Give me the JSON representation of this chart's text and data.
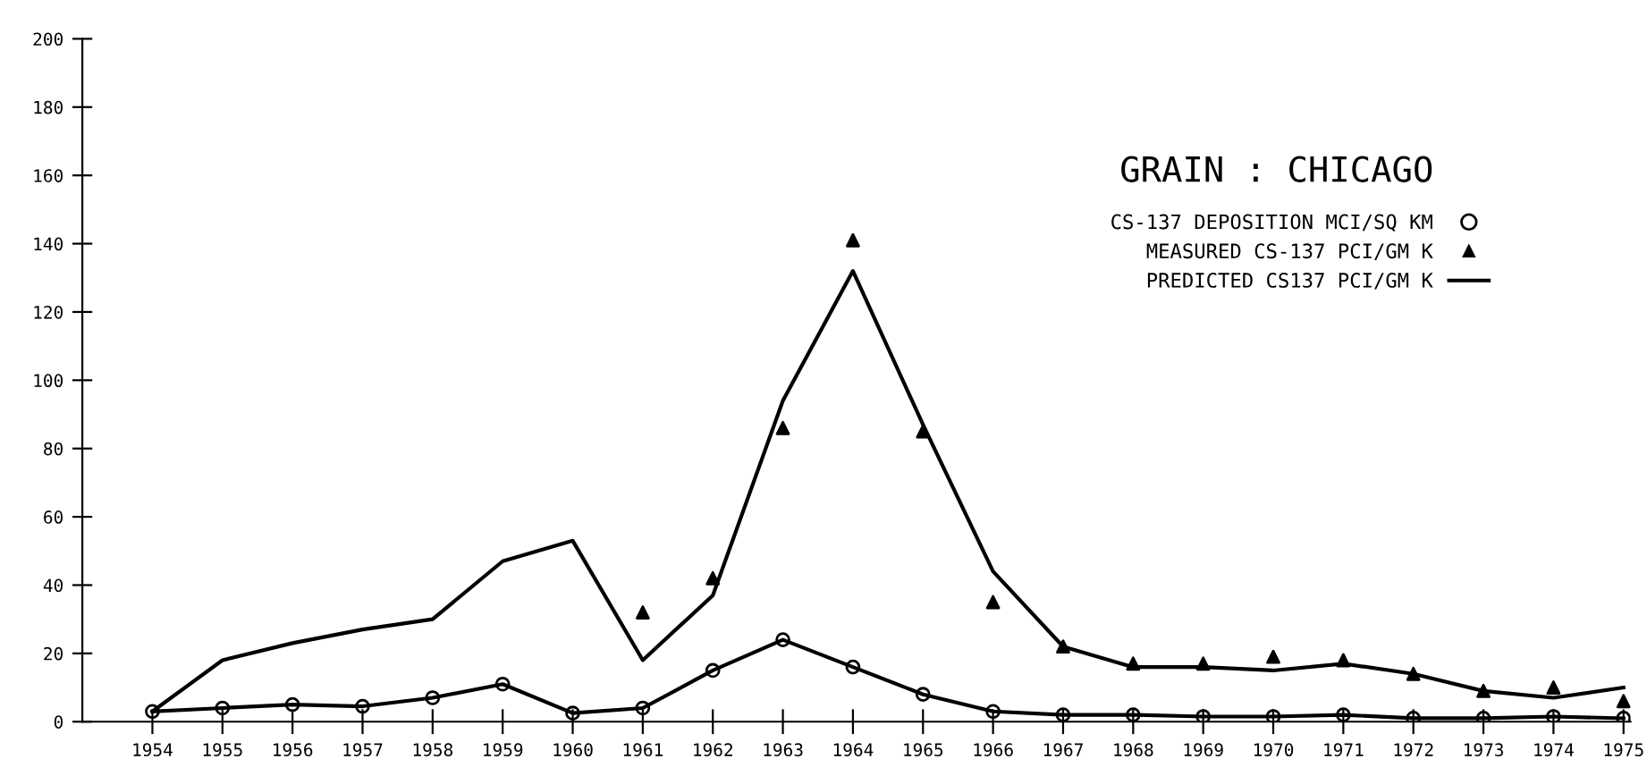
{
  "chart_data": {
    "type": "line",
    "title": "GRAIN : CHICAGO",
    "categories": [
      "1954",
      "1955",
      "1956",
      "1957",
      "1958",
      "1959",
      "1960",
      "1961",
      "1962",
      "1963",
      "1964",
      "1965",
      "1966",
      "1967",
      "1968",
      "1969",
      "1970",
      "1971",
      "1972",
      "1973",
      "1974",
      "1975"
    ],
    "series": [
      {
        "name": "CS-137 DEPOSITION MCI/SQ KM",
        "marker": "circle",
        "color": "#000000",
        "values": [
          3,
          4,
          5,
          4.5,
          7,
          11,
          2.5,
          4,
          15,
          24,
          16,
          8,
          3,
          2,
          2,
          1.5,
          1.5,
          2,
          1,
          1,
          1.5,
          1
        ]
      },
      {
        "name": "MEASURED CS-137 PCI/GM K",
        "type": "scatter",
        "marker": "triangle",
        "color": "#000000",
        "values": [
          null,
          null,
          null,
          null,
          null,
          null,
          null,
          32,
          42,
          86,
          141,
          85,
          35,
          22,
          17,
          17,
          19,
          18,
          14,
          9,
          10,
          6
        ]
      },
      {
        "name": "PREDICTED CS137 PCI/GM K",
        "marker": "none",
        "color": "#000000",
        "values": [
          3,
          18,
          23,
          27,
          30,
          47,
          53,
          18,
          37,
          94,
          132,
          87,
          44,
          22,
          16,
          16,
          15,
          17,
          14,
          9,
          7,
          10
        ]
      }
    ],
    "ylim": [
      0,
      200
    ],
    "yticks": [
      0,
      20,
      40,
      60,
      80,
      100,
      120,
      140,
      160,
      180,
      200
    ],
    "grid": false,
    "legend": "top right"
  }
}
